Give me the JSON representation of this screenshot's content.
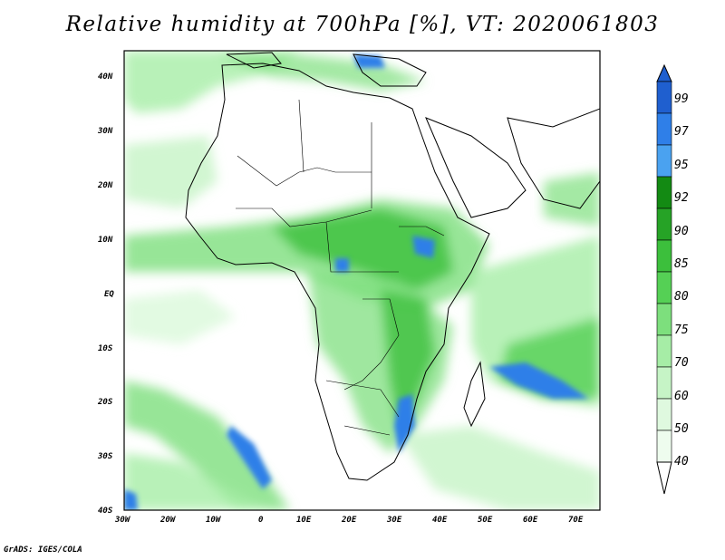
{
  "title": "Relative humidity at 700hPa [%], VT: 2020061803",
  "footer": "GrADS: IGES/COLA",
  "map": {
    "lon_range": [
      -30,
      75
    ],
    "lat_range": [
      -40,
      45
    ],
    "lat_ticks": [
      "40N",
      "30N",
      "20N",
      "10N",
      "EQ",
      "10S",
      "20S",
      "30S",
      "40S"
    ],
    "lon_ticks": [
      "30W",
      "20W",
      "10W",
      "0",
      "10E",
      "20E",
      "30E",
      "40E",
      "50E",
      "60E",
      "70E"
    ]
  },
  "colorbar": {
    "labels": [
      "99",
      "97",
      "95",
      "92",
      "90",
      "85",
      "80",
      "75",
      "70",
      "60",
      "50",
      "40"
    ],
    "colors": [
      "#1f5fcf",
      "#2f7fe8",
      "#4aa2f0",
      "#138a13",
      "#26a326",
      "#3cbf3c",
      "#55d055",
      "#7ddf7d",
      "#a6eda6",
      "#c6f4c6",
      "#dff9df",
      "#eefcee"
    ]
  }
}
